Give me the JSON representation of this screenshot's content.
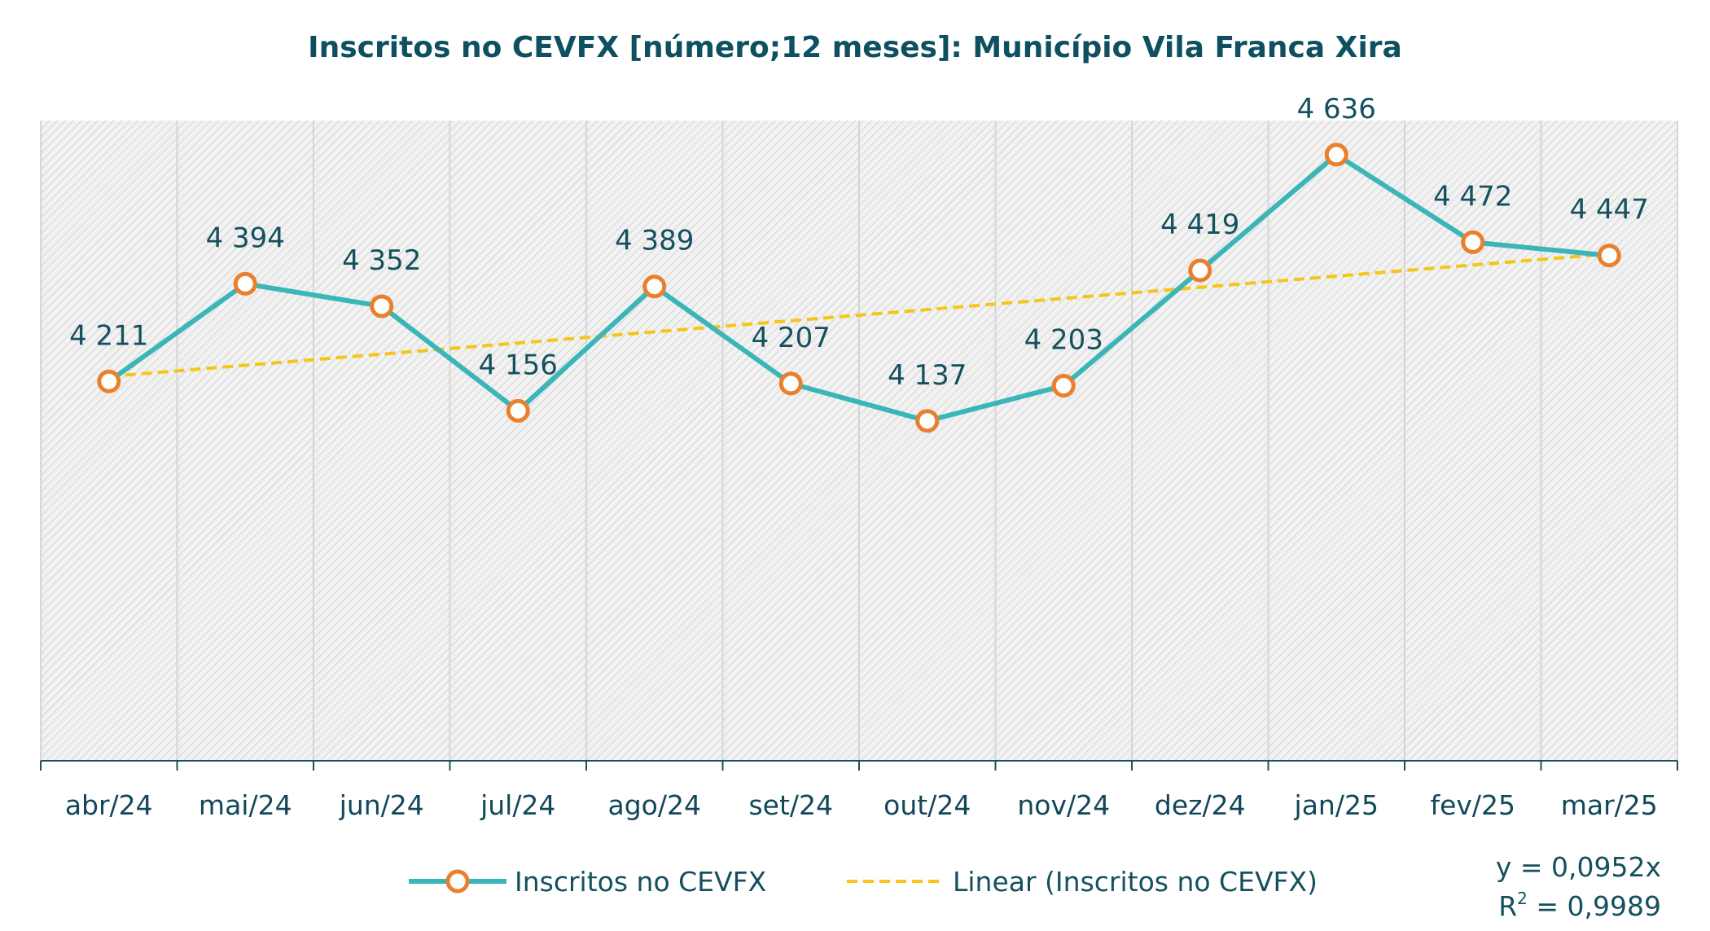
{
  "chart_data": {
    "type": "line",
    "title": "Inscritos no CEVFX [número;12 meses]: Município Vila Franca Xira",
    "categories": [
      "abr/24",
      "mai/24",
      "jun/24",
      "jul/24",
      "ago/24",
      "set/24",
      "out/24",
      "nov/24",
      "dez/24",
      "jan/25",
      "fev/25",
      "mar/25"
    ],
    "series": [
      {
        "name": "Inscritos no CEVFX",
        "values": [
          4211,
          4394,
          4352,
          4156,
          4389,
          4207,
          4137,
          4203,
          4419,
          4636,
          4472,
          4447
        ],
        "labels": [
          "4 211",
          "4 394",
          "4 352",
          "4 156",
          "4 389",
          "4 207",
          "4 137",
          "4 203",
          "4 419",
          "4 636",
          "4 472",
          "4 447"
        ],
        "line_color": "#3ab5b8",
        "marker_color": "#e8802e"
      }
    ],
    "trendline": {
      "name": "Linear (Inscritos no CEVFX)",
      "color": "#f5c518",
      "style": "dashed",
      "equation": "y = 0,0952x",
      "r2_prefix": "R",
      "r2_sup": "2",
      "r2_value": " = 0,9989"
    },
    "ylim": [
      3500,
      4700
    ],
    "grid": true,
    "legend_position": "bottom"
  }
}
